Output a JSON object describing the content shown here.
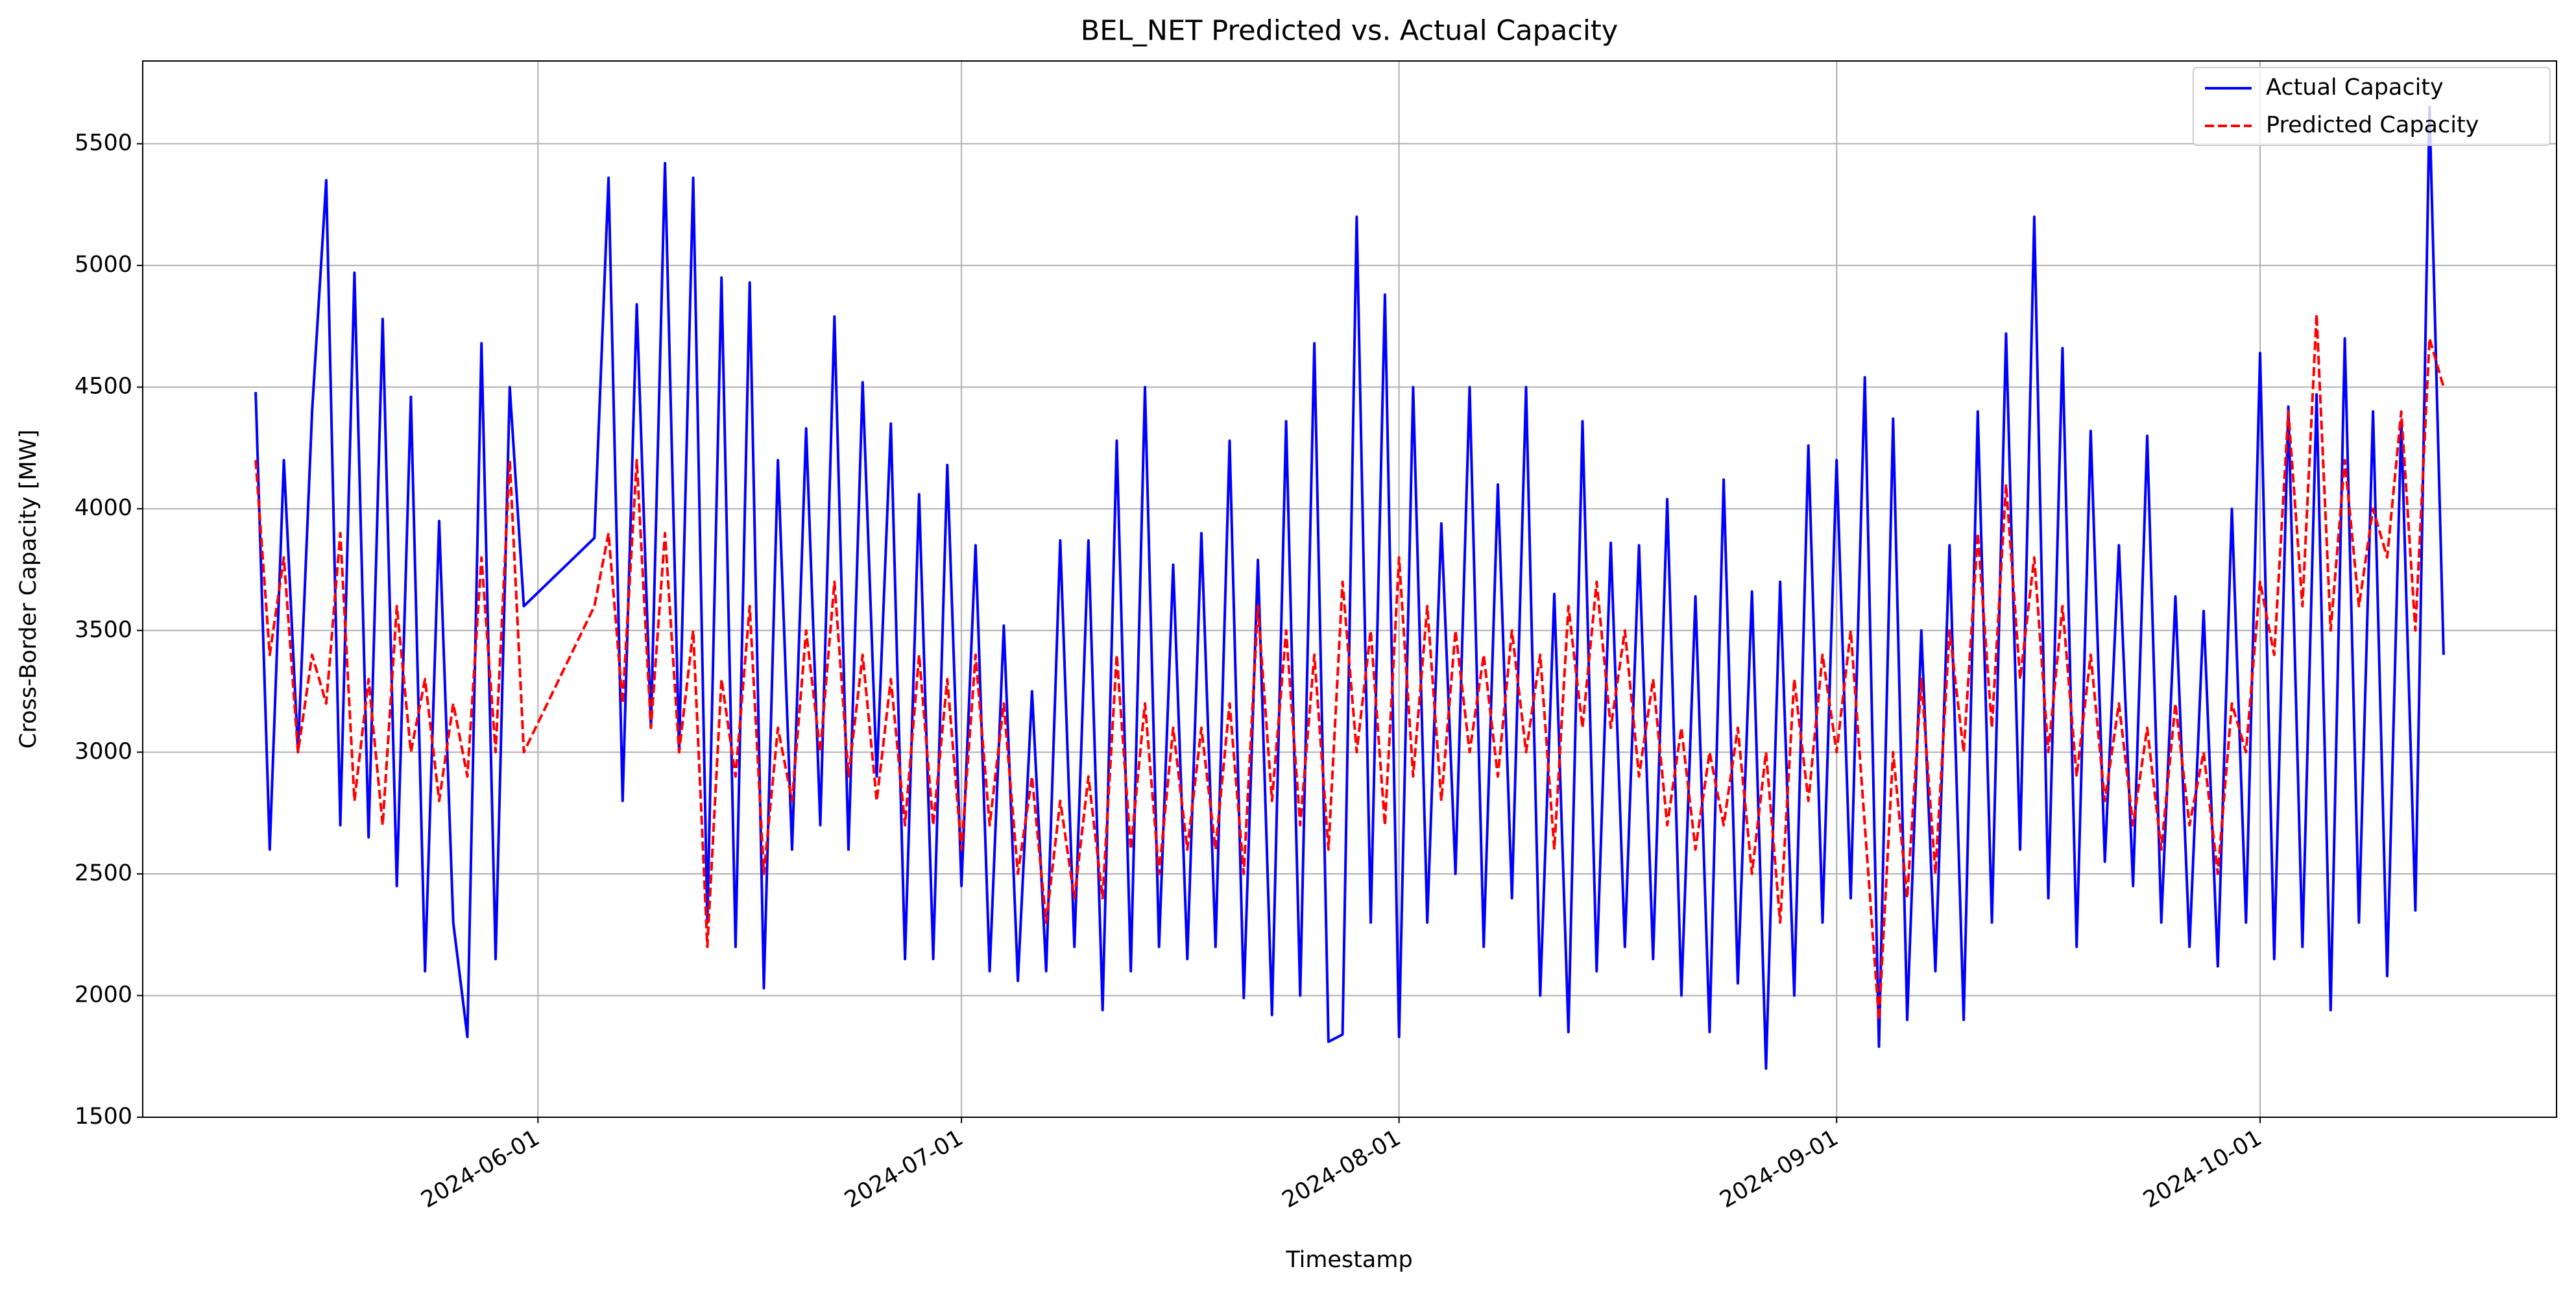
{
  "chart_data": {
    "type": "line",
    "title": "BEL_NET Predicted vs. Actual Capacity",
    "x_label": "Timestamp",
    "y_label": "Cross-Border Capacity [MW]",
    "x": [
      "2024-05-12",
      "2024-05-13",
      "2024-05-14",
      "2024-05-15",
      "2024-05-16",
      "2024-05-17",
      "2024-05-18",
      "2024-05-19",
      "2024-05-20",
      "2024-05-21",
      "2024-05-22",
      "2024-05-23",
      "2024-05-24",
      "2024-05-25",
      "2024-05-26",
      "2024-05-27",
      "2024-05-28",
      "2024-05-29",
      "2024-05-30",
      "2024-05-31",
      "2024-06-05",
      "2024-06-06",
      "2024-06-07",
      "2024-06-08",
      "2024-06-09",
      "2024-06-10",
      "2024-06-11",
      "2024-06-12",
      "2024-06-13",
      "2024-06-14",
      "2024-06-15",
      "2024-06-16",
      "2024-06-17",
      "2024-06-18",
      "2024-06-19",
      "2024-06-20",
      "2024-06-21",
      "2024-06-22",
      "2024-06-23",
      "2024-06-24",
      "2024-06-25",
      "2024-06-26",
      "2024-06-27",
      "2024-06-28",
      "2024-06-29",
      "2024-06-30",
      "2024-07-01",
      "2024-07-02",
      "2024-07-03",
      "2024-07-04",
      "2024-07-05",
      "2024-07-06",
      "2024-07-07",
      "2024-07-08",
      "2024-07-09",
      "2024-07-10",
      "2024-07-11",
      "2024-07-12",
      "2024-07-13",
      "2024-07-14",
      "2024-07-15",
      "2024-07-16",
      "2024-07-17",
      "2024-07-18",
      "2024-07-19",
      "2024-07-20",
      "2024-07-21",
      "2024-07-22",
      "2024-07-23",
      "2024-07-24",
      "2024-07-25",
      "2024-07-26",
      "2024-07-27",
      "2024-07-28",
      "2024-07-29",
      "2024-07-30",
      "2024-07-31",
      "2024-08-01",
      "2024-08-02",
      "2024-08-03",
      "2024-08-04",
      "2024-08-05",
      "2024-08-06",
      "2024-08-07",
      "2024-08-08",
      "2024-08-09",
      "2024-08-10",
      "2024-08-11",
      "2024-08-12",
      "2024-08-13",
      "2024-08-14",
      "2024-08-15",
      "2024-08-16",
      "2024-08-17",
      "2024-08-18",
      "2024-08-19",
      "2024-08-20",
      "2024-08-21",
      "2024-08-22",
      "2024-08-23",
      "2024-08-24",
      "2024-08-25",
      "2024-08-26",
      "2024-08-27",
      "2024-08-28",
      "2024-08-29",
      "2024-08-30",
      "2024-08-31",
      "2024-09-01",
      "2024-09-02",
      "2024-09-03",
      "2024-09-04",
      "2024-09-05",
      "2024-09-06",
      "2024-09-07",
      "2024-09-08",
      "2024-09-09",
      "2024-09-10",
      "2024-09-11",
      "2024-09-12",
      "2024-09-13",
      "2024-09-14",
      "2024-09-15",
      "2024-09-16",
      "2024-09-17",
      "2024-09-18",
      "2024-09-19",
      "2024-09-20",
      "2024-09-21",
      "2024-09-22",
      "2024-09-23",
      "2024-09-24",
      "2024-09-25",
      "2024-09-26",
      "2024-09-27",
      "2024-09-28",
      "2024-09-29",
      "2024-09-30",
      "2024-10-01",
      "2024-10-02",
      "2024-10-03",
      "2024-10-04",
      "2024-10-05",
      "2024-10-06",
      "2024-10-07",
      "2024-10-08",
      "2024-10-09",
      "2024-10-10",
      "2024-10-11",
      "2024-10-12",
      "2024-10-13",
      "2024-10-14"
    ],
    "series": [
      {
        "name": "Actual Capacity",
        "color": "#0000ff",
        "linestyle": "solid",
        "values": [
          4480,
          2600,
          4200,
          3000,
          4400,
          5350,
          2700,
          4970,
          2650,
          4780,
          2450,
          4460,
          2100,
          3950,
          2300,
          1830,
          4680,
          2150,
          4500,
          3600,
          3880,
          5360,
          2800,
          4840,
          3100,
          5420,
          3000,
          5360,
          2300,
          4950,
          2200,
          4930,
          2030,
          4200,
          2600,
          4330,
          2700,
          4790,
          2600,
          4520,
          2900,
          4350,
          2150,
          4060,
          2150,
          4180,
          2450,
          3850,
          2100,
          3520,
          2060,
          3250,
          2100,
          3870,
          2200,
          3870,
          1940,
          4280,
          2100,
          4500,
          2200,
          3770,
          2150,
          3900,
          2200,
          4280,
          1990,
          3790,
          1920,
          4360,
          2000,
          4680,
          1810,
          1840,
          5200,
          2300,
          4880,
          1830,
          4500,
          2300,
          3940,
          2500,
          4500,
          2200,
          4100,
          2400,
          4500,
          2000,
          3650,
          1850,
          4360,
          2100,
          3860,
          2200,
          3850,
          2150,
          4040,
          2000,
          3640,
          1850,
          4120,
          2050,
          3660,
          1700,
          3700,
          2000,
          4260,
          2300,
          4200,
          2400,
          4540,
          1790,
          4370,
          1900,
          3500,
          2100,
          3850,
          1900,
          4400,
          2300,
          4720,
          2600,
          5200,
          2400,
          4660,
          2200,
          4320,
          2550,
          3850,
          2450,
          4300,
          2300,
          3640,
          2200,
          3580,
          2120,
          4000,
          2300,
          4640,
          2150,
          4420,
          2200,
          4470,
          1940,
          4700,
          2300,
          4400,
          2080,
          4360,
          2350,
          5650,
          3400
        ]
      },
      {
        "name": "Predicted Capacity",
        "color": "#ff0000",
        "linestyle": "dashed",
        "values": [
          4200,
          3400,
          3800,
          3000,
          3400,
          3200,
          3900,
          2800,
          3300,
          2700,
          3600,
          3000,
          3300,
          2800,
          3200,
          2900,
          3800,
          3000,
          4200,
          3000,
          3600,
          3900,
          3200,
          4200,
          3100,
          3900,
          3000,
          3500,
          2200,
          3300,
          2900,
          3600,
          2500,
          3100,
          2800,
          3500,
          3000,
          3700,
          2900,
          3400,
          2800,
          3300,
          2700,
          3400,
          2700,
          3300,
          2600,
          3400,
          2700,
          3200,
          2500,
          2900,
          2300,
          2800,
          2400,
          2900,
          2400,
          3400,
          2600,
          3200,
          2500,
          3100,
          2600,
          3100,
          2600,
          3200,
          2500,
          3600,
          2800,
          3500,
          2700,
          3400,
          2600,
          3700,
          3000,
          3500,
          2700,
          3800,
          2900,
          3600,
          2800,
          3500,
          3000,
          3400,
          2900,
          3500,
          3000,
          3400,
          2600,
          3600,
          3100,
          3700,
          3100,
          3500,
          2900,
          3300,
          2700,
          3100,
          2600,
          3000,
          2700,
          3100,
          2500,
          3000,
          2300,
          3300,
          2800,
          3400,
          3000,
          3500,
          2700,
          1900,
          3000,
          2400,
          3300,
          2500,
          3500,
          3000,
          3900,
          3100,
          4100,
          3300,
          3800,
          3000,
          3600,
          2900,
          3400,
          2800,
          3200,
          2700,
          3100,
          2600,
          3200,
          2700,
          3000,
          2500,
          3200,
          3000,
          3700,
          3400,
          4400,
          3600,
          4800,
          3500,
          4200,
          3600,
          4000,
          3800,
          4400,
          3500,
          4700,
          4500
        ]
      }
    ],
    "xlim": [
      "2024-05-04",
      "2024-10-22"
    ],
    "xticks": [
      "2024-06-01",
      "2024-07-01",
      "2024-08-01",
      "2024-09-01",
      "2024-10-01"
    ],
    "ylim": [
      1500,
      5840
    ],
    "yticks": [
      1500,
      2000,
      2500,
      3000,
      3500,
      4000,
      4500,
      5000,
      5500
    ],
    "grid": true,
    "legend": "upper right"
  }
}
